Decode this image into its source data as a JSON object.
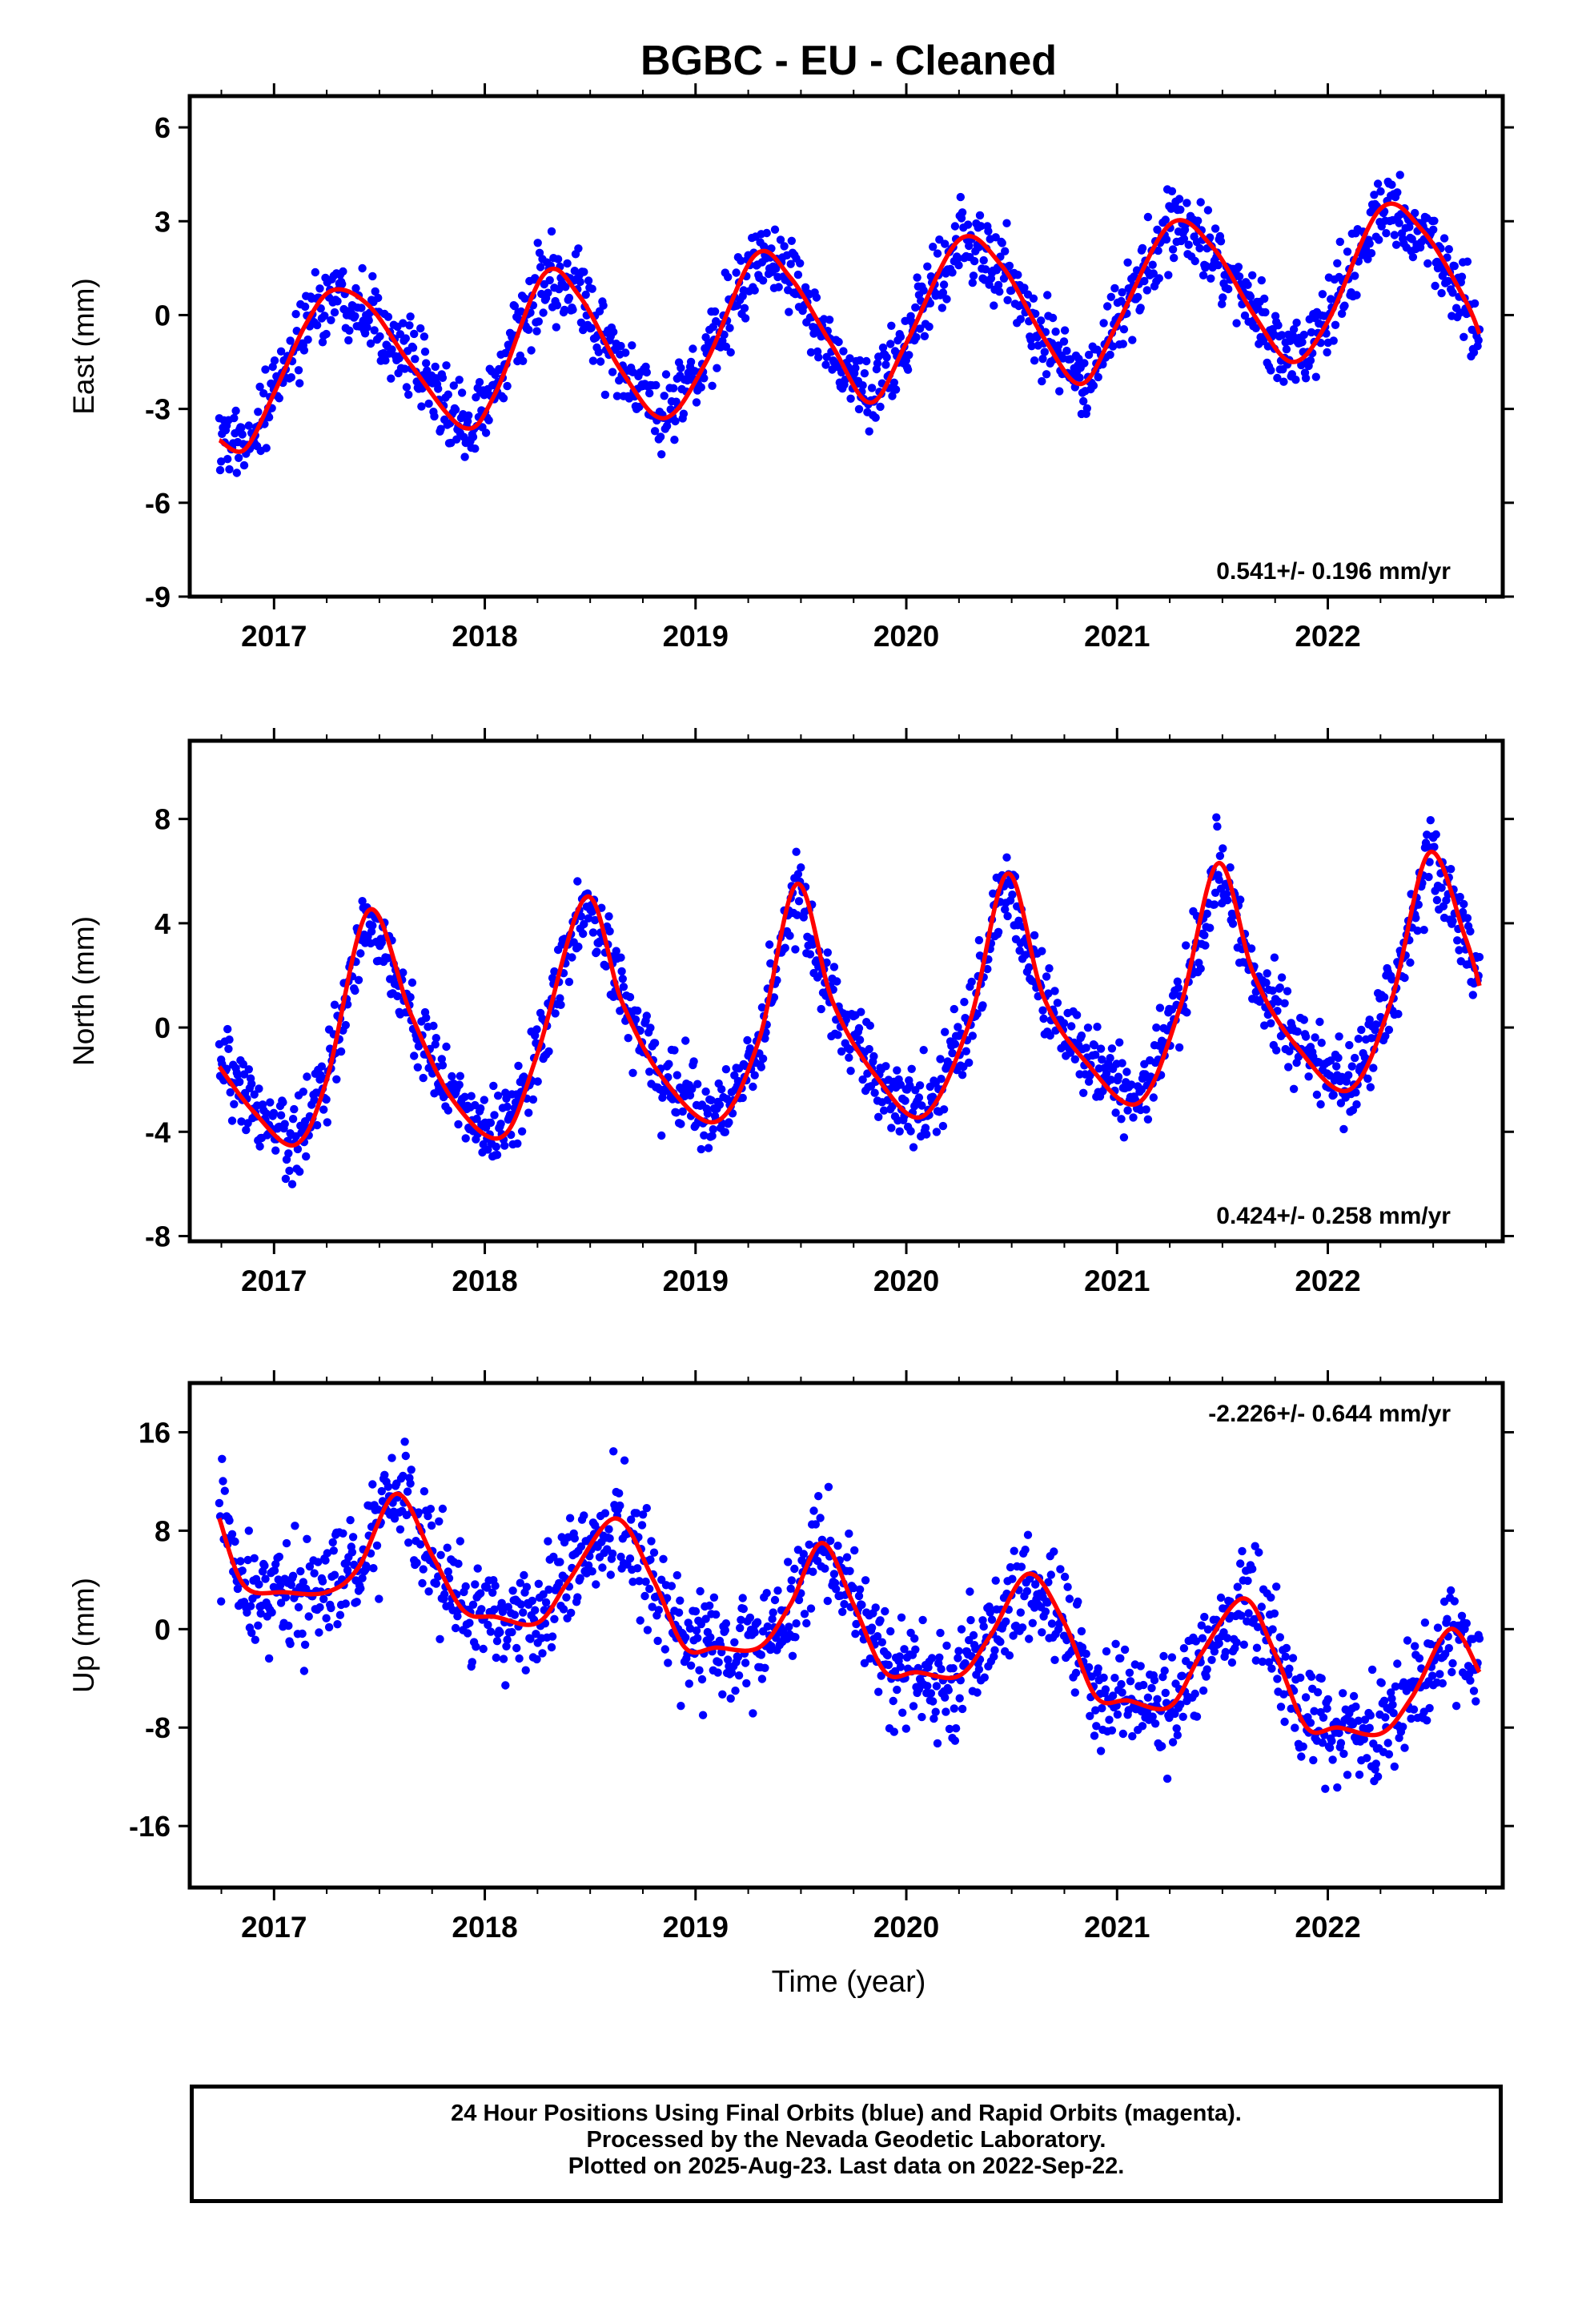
{
  "title": "BGBC  - EU - Cleaned",
  "xlabel": "Time (year)",
  "footer": {
    "line1": "24 Hour Positions Using Final Orbits (blue) and Rapid Orbits (magenta).",
    "line2": "Processed by the Nevada Geodetic Laboratory.",
    "line3": "Plotted on 2025-Aug-23. Last data on 2022-Sep-22."
  },
  "colors": {
    "observations": "#0000ff",
    "model": "#ff0000",
    "frame": "#000000"
  },
  "chart_data": [
    {
      "type": "scatter",
      "name": "east",
      "ylabel": "East (mm)",
      "xlim": [
        2016.6,
        2022.83
      ],
      "ylim": [
        -9,
        7
      ],
      "xticks": [
        "2017",
        "2018",
        "2019",
        "2020",
        "2021",
        "2022"
      ],
      "yticks": [
        6,
        3,
        0,
        -3,
        -6,
        -9
      ],
      "rate": "0.541+/- 0.196 mm/yr",
      "rate_position": "bottom-right",
      "data_start": 2016.74,
      "data_end": 2022.72,
      "model_curve": {
        "x": [
          2016.74,
          2016.86,
          2017.0,
          2017.15,
          2017.28,
          2017.45,
          2017.65,
          2017.9,
          2018.05,
          2018.28,
          2018.45,
          2018.65,
          2018.85,
          2019.05,
          2019.28,
          2019.45,
          2019.65,
          2019.83,
          2020.0,
          2020.25,
          2020.45,
          2020.65,
          2020.83,
          2021.0,
          2021.25,
          2021.45,
          2021.65,
          2021.83,
          2022.0,
          2022.25,
          2022.45,
          2022.65,
          2022.72
        ],
        "y": [
          -4.0,
          -4.3,
          -2.5,
          -0.3,
          0.8,
          0.3,
          -1.6,
          -3.6,
          -2.5,
          1.3,
          0.6,
          -1.8,
          -3.3,
          -1.5,
          1.9,
          1.2,
          -1.0,
          -2.8,
          -0.9,
          2.4,
          1.6,
          -0.7,
          -2.2,
          -0.3,
          2.9,
          2.2,
          0.0,
          -1.5,
          -0.2,
          3.4,
          2.7,
          0.5,
          -0.6
        ]
      },
      "scatter_spread": 0.9
    },
    {
      "type": "scatter",
      "name": "north",
      "ylabel": "North (mm)",
      "xlim": [
        2016.6,
        2022.83
      ],
      "ylim": [
        -8.2,
        11
      ],
      "xticks": [
        "2017",
        "2018",
        "2019",
        "2020",
        "2021",
        "2022"
      ],
      "yticks": [
        8,
        4,
        0,
        -4,
        -8
      ],
      "rate": "0.424+/- 0.258 mm/yr",
      "rate_position": "bottom-right",
      "data_start": 2016.74,
      "data_end": 2022.72,
      "model_curve": {
        "x": [
          2016.74,
          2016.9,
          2017.1,
          2017.25,
          2017.45,
          2017.65,
          2017.85,
          2018.08,
          2018.25,
          2018.48,
          2018.65,
          2018.85,
          2019.1,
          2019.3,
          2019.48,
          2019.65,
          2019.85,
          2020.08,
          2020.3,
          2020.48,
          2020.65,
          2020.85,
          2021.1,
          2021.3,
          2021.48,
          2021.65,
          2021.85,
          2022.1,
          2022.3,
          2022.48,
          2022.65,
          2022.72
        ],
        "y": [
          -1.5,
          -3.2,
          -4.5,
          -2.0,
          4.5,
          0.5,
          -2.8,
          -4.2,
          -1.0,
          5.0,
          1.0,
          -2.0,
          -3.6,
          -0.5,
          5.5,
          1.0,
          -1.8,
          -3.4,
          0.2,
          5.9,
          1.2,
          -1.3,
          -2.9,
          0.8,
          6.3,
          2.0,
          -0.7,
          -2.4,
          1.0,
          6.7,
          3.5,
          1.6
        ]
      },
      "scatter_spread": 1.1
    },
    {
      "type": "scatter",
      "name": "up",
      "ylabel": "Up (mm)",
      "xlim": [
        2016.6,
        2022.83
      ],
      "ylim": [
        -21,
        20
      ],
      "xticks": [
        "2017",
        "2018",
        "2019",
        "2020",
        "2021",
        "2022"
      ],
      "yticks": [
        16,
        8,
        0,
        -8,
        -16
      ],
      "rate": "-2.226+/- 0.644 mm/yr",
      "rate_position": "top-right",
      "data_start": 2016.74,
      "data_end": 2022.72,
      "model_curve": {
        "x": [
          2016.74,
          2016.86,
          2017.05,
          2017.25,
          2017.4,
          2017.58,
          2017.75,
          2017.9,
          2018.05,
          2018.25,
          2018.4,
          2018.62,
          2018.8,
          2018.95,
          2019.1,
          2019.3,
          2019.45,
          2019.6,
          2019.75,
          2019.9,
          2020.05,
          2020.25,
          2020.4,
          2020.58,
          2020.75,
          2020.9,
          2021.05,
          2021.25,
          2021.4,
          2021.6,
          2021.75,
          2021.9,
          2022.05,
          2022.25,
          2022.4,
          2022.58,
          2022.72
        ],
        "y": [
          9.0,
          3.5,
          3.0,
          3.0,
          5.0,
          11.0,
          6.0,
          1.5,
          1.0,
          0.5,
          4.0,
          9.0,
          4.0,
          -1.5,
          -1.5,
          -1.5,
          2.0,
          7.0,
          2.0,
          -3.5,
          -3.5,
          -3.8,
          -0.5,
          4.5,
          0.5,
          -5.5,
          -5.8,
          -6.3,
          -2.0,
          2.5,
          -2.0,
          -8.0,
          -8.0,
          -8.5,
          -5.5,
          0.0,
          -3.5
        ]
      },
      "scatter_spread": 3.2
    }
  ]
}
